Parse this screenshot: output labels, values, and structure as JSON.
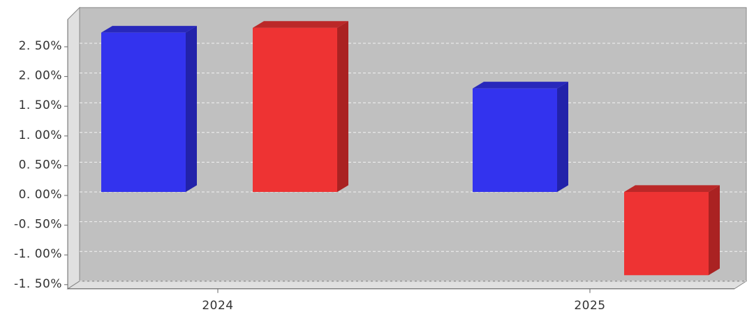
{
  "chart_data": {
    "type": "bar",
    "style": "3d",
    "categories": [
      "2024",
      "2025"
    ],
    "series": [
      {
        "color": "#3333ee",
        "side_color": "#2222aa",
        "top_color": "#2828bb",
        "values": [
          2.68,
          1.74
        ]
      },
      {
        "color": "#ee3333",
        "side_color": "#aa2222",
        "top_color": "#bb2828",
        "values": [
          2.76,
          -1.4
        ]
      }
    ],
    "ylim": [
      -1.5,
      3.1
    ],
    "yticks": [
      2.5,
      2.0,
      1.5,
      1.0,
      0.5,
      0.0,
      -0.5,
      -1.0,
      -1.5
    ],
    "ytick_labels": [
      "2. 50%",
      "2. 00%",
      "1. 50%",
      "1. 00%",
      "0. 50%",
      "0. 00%",
      "-0. 50%",
      "-1. 00%",
      "-1. 50%"
    ],
    "grid": true,
    "legend": "none",
    "plot_background": "#c0c0c0",
    "wall_color": "#e0e0e0"
  }
}
